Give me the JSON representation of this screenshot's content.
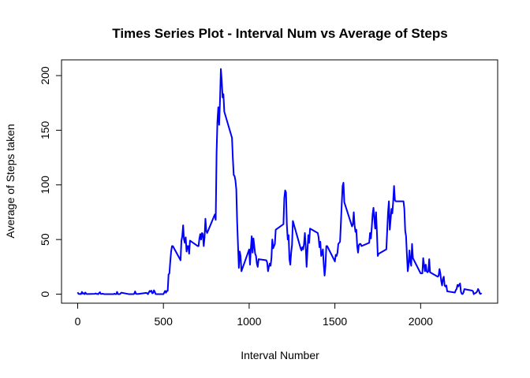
{
  "chart_data": {
    "type": "line",
    "title": "Times Series Plot - Interval Num vs Average of Steps",
    "xlabel": "Interval Number",
    "ylabel": "Average of Steps taken",
    "xlim": [
      -94.2,
      2449.2
    ],
    "ylim": [
      -8.25,
      214.4
    ],
    "xticks": [
      0,
      500,
      1000,
      1500,
      2000
    ],
    "yticks": [
      0,
      50,
      100,
      150,
      200
    ],
    "series": [
      {
        "name": "Average of Steps",
        "color": "#0000ff",
        "x": [
          0,
          5,
          10,
          15,
          20,
          25,
          30,
          35,
          40,
          45,
          50,
          55,
          100,
          105,
          110,
          115,
          120,
          125,
          130,
          135,
          140,
          145,
          150,
          155,
          200,
          205,
          210,
          215,
          220,
          225,
          230,
          235,
          240,
          245,
          250,
          255,
          300,
          305,
          310,
          315,
          320,
          325,
          330,
          335,
          340,
          345,
          350,
          355,
          400,
          405,
          410,
          415,
          420,
          425,
          430,
          435,
          440,
          445,
          450,
          455,
          500,
          505,
          510,
          515,
          520,
          525,
          530,
          535,
          540,
          545,
          550,
          555,
          600,
          605,
          610,
          615,
          620,
          625,
          630,
          635,
          640,
          645,
          650,
          655,
          700,
          705,
          710,
          715,
          720,
          725,
          730,
          735,
          740,
          745,
          750,
          755,
          800,
          805,
          810,
          815,
          820,
          825,
          830,
          835,
          840,
          845,
          850,
          855,
          900,
          905,
          910,
          915,
          920,
          925,
          930,
          935,
          940,
          945,
          950,
          955,
          1000,
          1005,
          1010,
          1015,
          1020,
          1025,
          1030,
          1035,
          1040,
          1045,
          1050,
          1055,
          1100,
          1105,
          1110,
          1115,
          1120,
          1125,
          1130,
          1135,
          1140,
          1145,
          1150,
          1155,
          1200,
          1205,
          1210,
          1215,
          1220,
          1225,
          1230,
          1235,
          1240,
          1245,
          1250,
          1255,
          1300,
          1305,
          1310,
          1315,
          1320,
          1325,
          1330,
          1335,
          1340,
          1345,
          1350,
          1355,
          1400,
          1405,
          1410,
          1415,
          1420,
          1425,
          1430,
          1435,
          1440,
          1445,
          1450,
          1455,
          1500,
          1505,
          1510,
          1515,
          1520,
          1525,
          1530,
          1535,
          1540,
          1545,
          1550,
          1555,
          1600,
          1605,
          1610,
          1615,
          1620,
          1625,
          1630,
          1635,
          1640,
          1645,
          1650,
          1655,
          1700,
          1705,
          1710,
          1715,
          1720,
          1725,
          1730,
          1735,
          1740,
          1745,
          1750,
          1755,
          1800,
          1805,
          1810,
          1815,
          1820,
          1825,
          1830,
          1835,
          1840,
          1845,
          1850,
          1855,
          1900,
          1905,
          1910,
          1915,
          1920,
          1925,
          1930,
          1935,
          1940,
          1945,
          1950,
          1955,
          2000,
          2005,
          2010,
          2015,
          2020,
          2025,
          2030,
          2035,
          2040,
          2045,
          2050,
          2055,
          2100,
          2105,
          2110,
          2115,
          2120,
          2125,
          2130,
          2135,
          2140,
          2145,
          2150,
          2155,
          2200,
          2205,
          2210,
          2215,
          2220,
          2225,
          2230,
          2235,
          2240,
          2245,
          2250,
          2255,
          2300,
          2305,
          2310,
          2315,
          2320,
          2325,
          2330,
          2335,
          2340,
          2345,
          2350,
          2355
        ],
        "values": [
          1.7,
          0.3,
          0.1,
          0.2,
          0.1,
          2.1,
          0.5,
          0.9,
          0,
          1.5,
          0.3,
          0.1,
          0.3,
          0.7,
          0.2,
          0.3,
          0,
          1.1,
          1.8,
          0.2,
          0.2,
          0.4,
          0.3,
          0,
          0,
          0,
          0,
          0.5,
          0,
          0,
          2.1,
          0,
          0,
          0,
          0.6,
          1.4,
          0,
          0,
          0,
          0,
          0,
          0,
          0.5,
          2.5,
          0.3,
          0.2,
          0.2,
          0.2,
          1.2,
          0.9,
          0,
          1.6,
          3,
          2.3,
          3.2,
          0.8,
          1.2,
          3.5,
          2,
          0,
          0,
          1.5,
          3,
          1.3,
          3,
          3,
          18,
          19,
          30,
          39,
          44,
          44,
          31,
          49,
          53,
          63,
          50,
          47,
          52,
          39,
          44,
          44,
          37,
          49,
          44,
          44,
          51,
          55,
          50,
          56,
          55,
          44,
          52,
          69,
          58,
          56,
          73,
          68,
          129,
          158,
          171,
          155,
          177,
          206,
          196,
          180,
          183,
          167,
          143,
          124,
          109,
          108,
          104,
          96,
          66,
          45,
          24,
          39,
          35,
          21,
          41,
          27,
          42,
          53,
          38,
          51,
          44,
          37,
          35,
          28,
          25,
          32,
          31,
          29,
          21,
          25,
          28,
          26,
          33,
          50,
          42,
          44,
          46,
          59,
          64,
          88,
          95,
          93,
          63,
          50,
          54,
          32,
          27,
          38,
          45,
          67,
          42,
          40,
          43,
          41,
          46,
          56,
          43,
          25,
          40,
          54,
          47,
          60,
          56,
          52,
          43,
          48,
          35,
          37,
          41,
          27,
          17,
          26,
          44,
          44,
          30,
          36,
          35,
          38,
          46,
          47,
          48,
          65,
          83,
          99,
          102,
          84,
          62,
          64,
          75,
          63,
          57,
          59,
          44,
          38,
          45,
          46,
          46,
          44,
          47,
          56,
          51,
          61,
          73,
          79,
          69,
          60,
          75,
          57,
          35,
          37,
          41,
          58,
          75,
          85,
          59,
          68,
          78,
          74,
          85,
          99,
          86,
          85,
          85,
          78,
          58,
          53,
          36,
          21,
          27,
          40,
          30,
          26,
          46,
          33,
          19,
          19,
          19,
          33,
          27,
          21,
          27,
          21,
          20,
          21,
          32,
          20,
          16,
          17,
          23,
          19,
          12,
          8,
          14,
          16,
          8,
          7,
          8,
          2.6,
          1.5,
          3.7,
          4.8,
          8.5,
          7.1,
          8.7,
          9.8,
          2.2,
          0.3,
          0.1,
          1.6,
          4.6,
          3.3,
          2.8,
          0,
          0.8,
          1.0,
          1.6,
          2.6,
          4.7,
          3.3,
          0.6,
          0.2,
          1.1
        ]
      }
    ]
  }
}
